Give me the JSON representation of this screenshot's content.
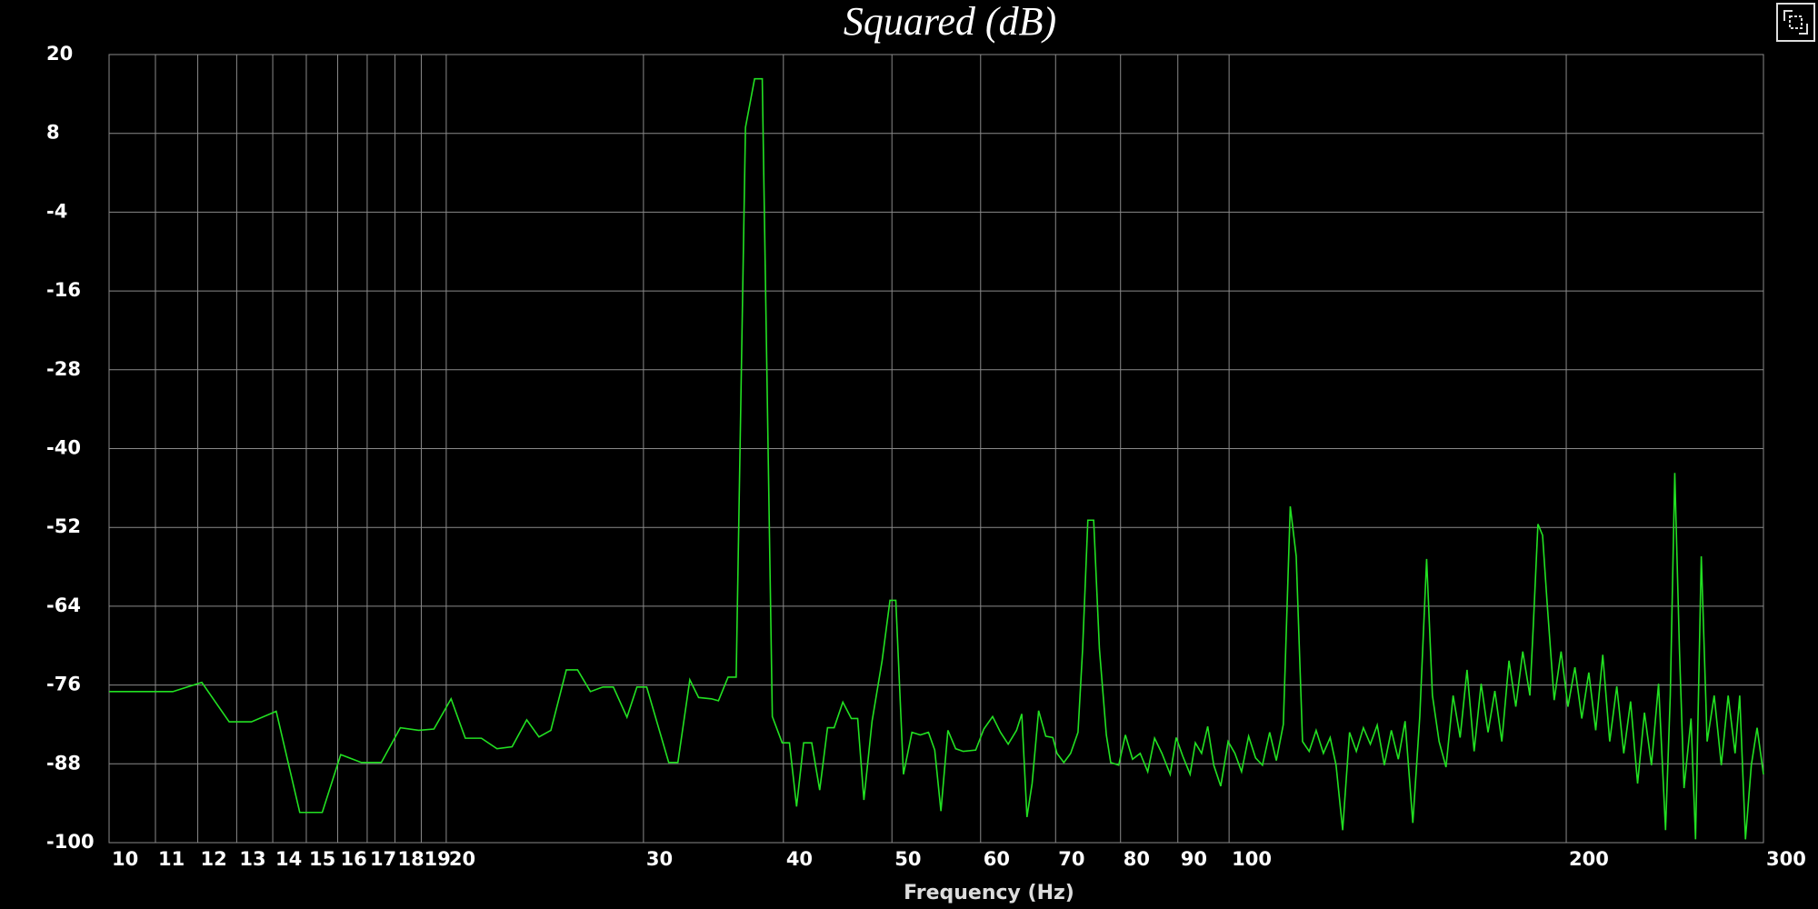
{
  "chart_data": {
    "type": "line",
    "title": "Squared (dB)",
    "x_label": "Frequency (Hz)",
    "x_scale": "log",
    "grid": true,
    "color": "#22e022",
    "xlim": [
      10,
      300
    ],
    "ylim": [
      -100,
      20
    ],
    "xticks": [
      10,
      11,
      12,
      13,
      14,
      15,
      16,
      17,
      18,
      19,
      20,
      30,
      40,
      50,
      60,
      70,
      80,
      90,
      100,
      200,
      300
    ],
    "yticks": [
      -100,
      -88,
      -76,
      -64,
      -52,
      -40,
      -28,
      -16,
      -4,
      8,
      20
    ],
    "x": [
      10,
      11.4,
      12.1,
      12.8,
      13.4,
      14.1,
      14.8,
      15.5,
      16.1,
      16.8,
      17.5,
      18.2,
      18.9,
      19.5,
      20.2,
      20.8,
      21.5,
      22.2,
      22.9,
      23.6,
      24.2,
      24.8,
      25.6,
      26.2,
      26.9,
      27.6,
      28.2,
      29.0,
      29.6,
      30.2,
      31.6,
      32.2,
      33.0,
      33.6,
      34.5,
      35.0,
      35.7,
      36.3,
      37.0,
      37.7,
      38.3,
      39.1,
      39.9,
      40.5,
      41.1,
      41.7,
      42.4,
      43.1,
      43.8,
      44.4,
      45.2,
      46.0,
      46.6,
      47.2,
      48.0,
      49.0,
      49.8,
      50.4,
      51.2,
      52.1,
      53.0,
      53.9,
      54.6,
      55.3,
      56.1,
      57.0,
      57.9,
      59.4,
      60.4,
      61.5,
      62.5,
      63.5,
      64.6,
      65.3,
      66.0,
      66.7,
      67.6,
      68.6,
      69.6,
      70.2,
      71.2,
      72.2,
      73.3,
      74.0,
      74.8,
      75.7,
      76.6,
      77.7,
      78.4,
      79.7,
      80.8,
      82.0,
      83.3,
      84.6,
      85.8,
      87.1,
      88.6,
      89.7,
      90.9,
      92.3,
      93.3,
      94.5,
      95.7,
      96.9,
      98.3,
      99.8,
      101.2,
      102.6,
      104.1,
      105.6,
      107.1,
      108.7,
      110.2,
      111.8,
      113.4,
      114.8,
      116.3,
      117.9,
      119.6,
      121.4,
      123.1,
      124.6,
      126.3,
      128.1,
      129.9,
      131.8,
      133.7,
      135.6,
      137.6,
      139.6,
      141.6,
      143.6,
      145.9,
      148.0,
      150.1,
      151.9,
      154.0,
      156.2,
      158.5,
      160.8,
      163.1,
      165.5,
      167.9,
      170.3,
      172.7,
      175.2,
      177.8,
      180.3,
      182.9,
      185.6,
      186.9,
      188.7,
      190.5,
      192.3,
      195.1,
      197.9,
      200.7,
      203.6,
      206.5,
      209.5,
      212.5,
      215.6,
      218.7,
      221.9,
      225.1,
      228.3,
      231.6,
      234.9,
      238.3,
      241.8,
      245.3,
      247.7,
      250.0,
      252.4,
      254.8,
      258.5,
      260.9,
      264.0,
      267.2,
      271.1,
      275.1,
      279.0,
      283.0,
      285.7,
      289.1,
      292.6,
      296.1,
      300
    ],
    "values": [
      -77,
      -77,
      -75.6,
      -81.6,
      -81.6,
      -80,
      -95.4,
      -95.4,
      -86.6,
      -87.8,
      -87.8,
      -82.5,
      -82.9,
      -82.7,
      -78.1,
      -84.1,
      -84.1,
      -85.7,
      -85.4,
      -81.3,
      -83.9,
      -82.9,
      -73.7,
      -73.7,
      -77,
      -76.3,
      -76.3,
      -80.9,
      -76.3,
      -76.3,
      -87.8,
      -87.8,
      -75.2,
      -77.9,
      -78.1,
      -78.4,
      -74.8,
      -74.8,
      8.9,
      16.3,
      16.3,
      -80.8,
      -84.8,
      -84.8,
      -94.5,
      -84.8,
      -84.8,
      -92,
      -82.5,
      -82.5,
      -78.6,
      -81.1,
      -81.1,
      -93.5,
      -81.5,
      -72.3,
      -63.1,
      -63.1,
      -89.6,
      -83.2,
      -83.6,
      -83.2,
      -85.9,
      -95.2,
      -82.9,
      -85.7,
      -86.1,
      -85.9,
      -82.7,
      -80.8,
      -83.2,
      -85,
      -82.9,
      -80.4,
      -96.1,
      -91,
      -79.9,
      -83.8,
      -84,
      -86.4,
      -87.8,
      -86.4,
      -83.2,
      -70.5,
      -50.9,
      -50.9,
      -70.5,
      -83.6,
      -87.8,
      -88.2,
      -83.6,
      -87.3,
      -86.4,
      -89.2,
      -84.1,
      -86.4,
      -89.6,
      -84,
      -86.8,
      -89.6,
      -84.8,
      -86.4,
      -82.3,
      -88.2,
      -91.4,
      -84.6,
      -86.4,
      -89.2,
      -83.8,
      -87.1,
      -88.2,
      -83.2,
      -87.5,
      -82,
      -48.8,
      -56.4,
      -84.6,
      -86.1,
      -82.9,
      -86.4,
      -84,
      -88.2,
      -98.1,
      -83.2,
      -86.1,
      -82.5,
      -85,
      -82.1,
      -88.2,
      -82.9,
      -87.3,
      -81.5,
      -97,
      -80.8,
      -56.8,
      -77.6,
      -84.6,
      -88.5,
      -77.6,
      -84,
      -73.7,
      -86.1,
      -75.8,
      -83.2,
      -76.9,
      -84.6,
      -72.3,
      -79.3,
      -70.9,
      -77.6,
      -67,
      -51.5,
      -53.2,
      -63.5,
      -78.3,
      -70.9,
      -79.3,
      -73.3,
      -81.1,
      -74.1,
      -82.9,
      -71.4,
      -84.6,
      -76.2,
      -86.4,
      -78.5,
      -91,
      -80.2,
      -88.2,
      -75.8,
      -98.1,
      -77.6,
      -43.7,
      -70.5,
      -91.7,
      -81.1,
      -99.5,
      -56.4,
      -84.6,
      -77.6,
      -88.2,
      -77.6,
      -86.4,
      -77.6,
      -99.5,
      -88.2,
      -82.5,
      -89.6
    ]
  }
}
